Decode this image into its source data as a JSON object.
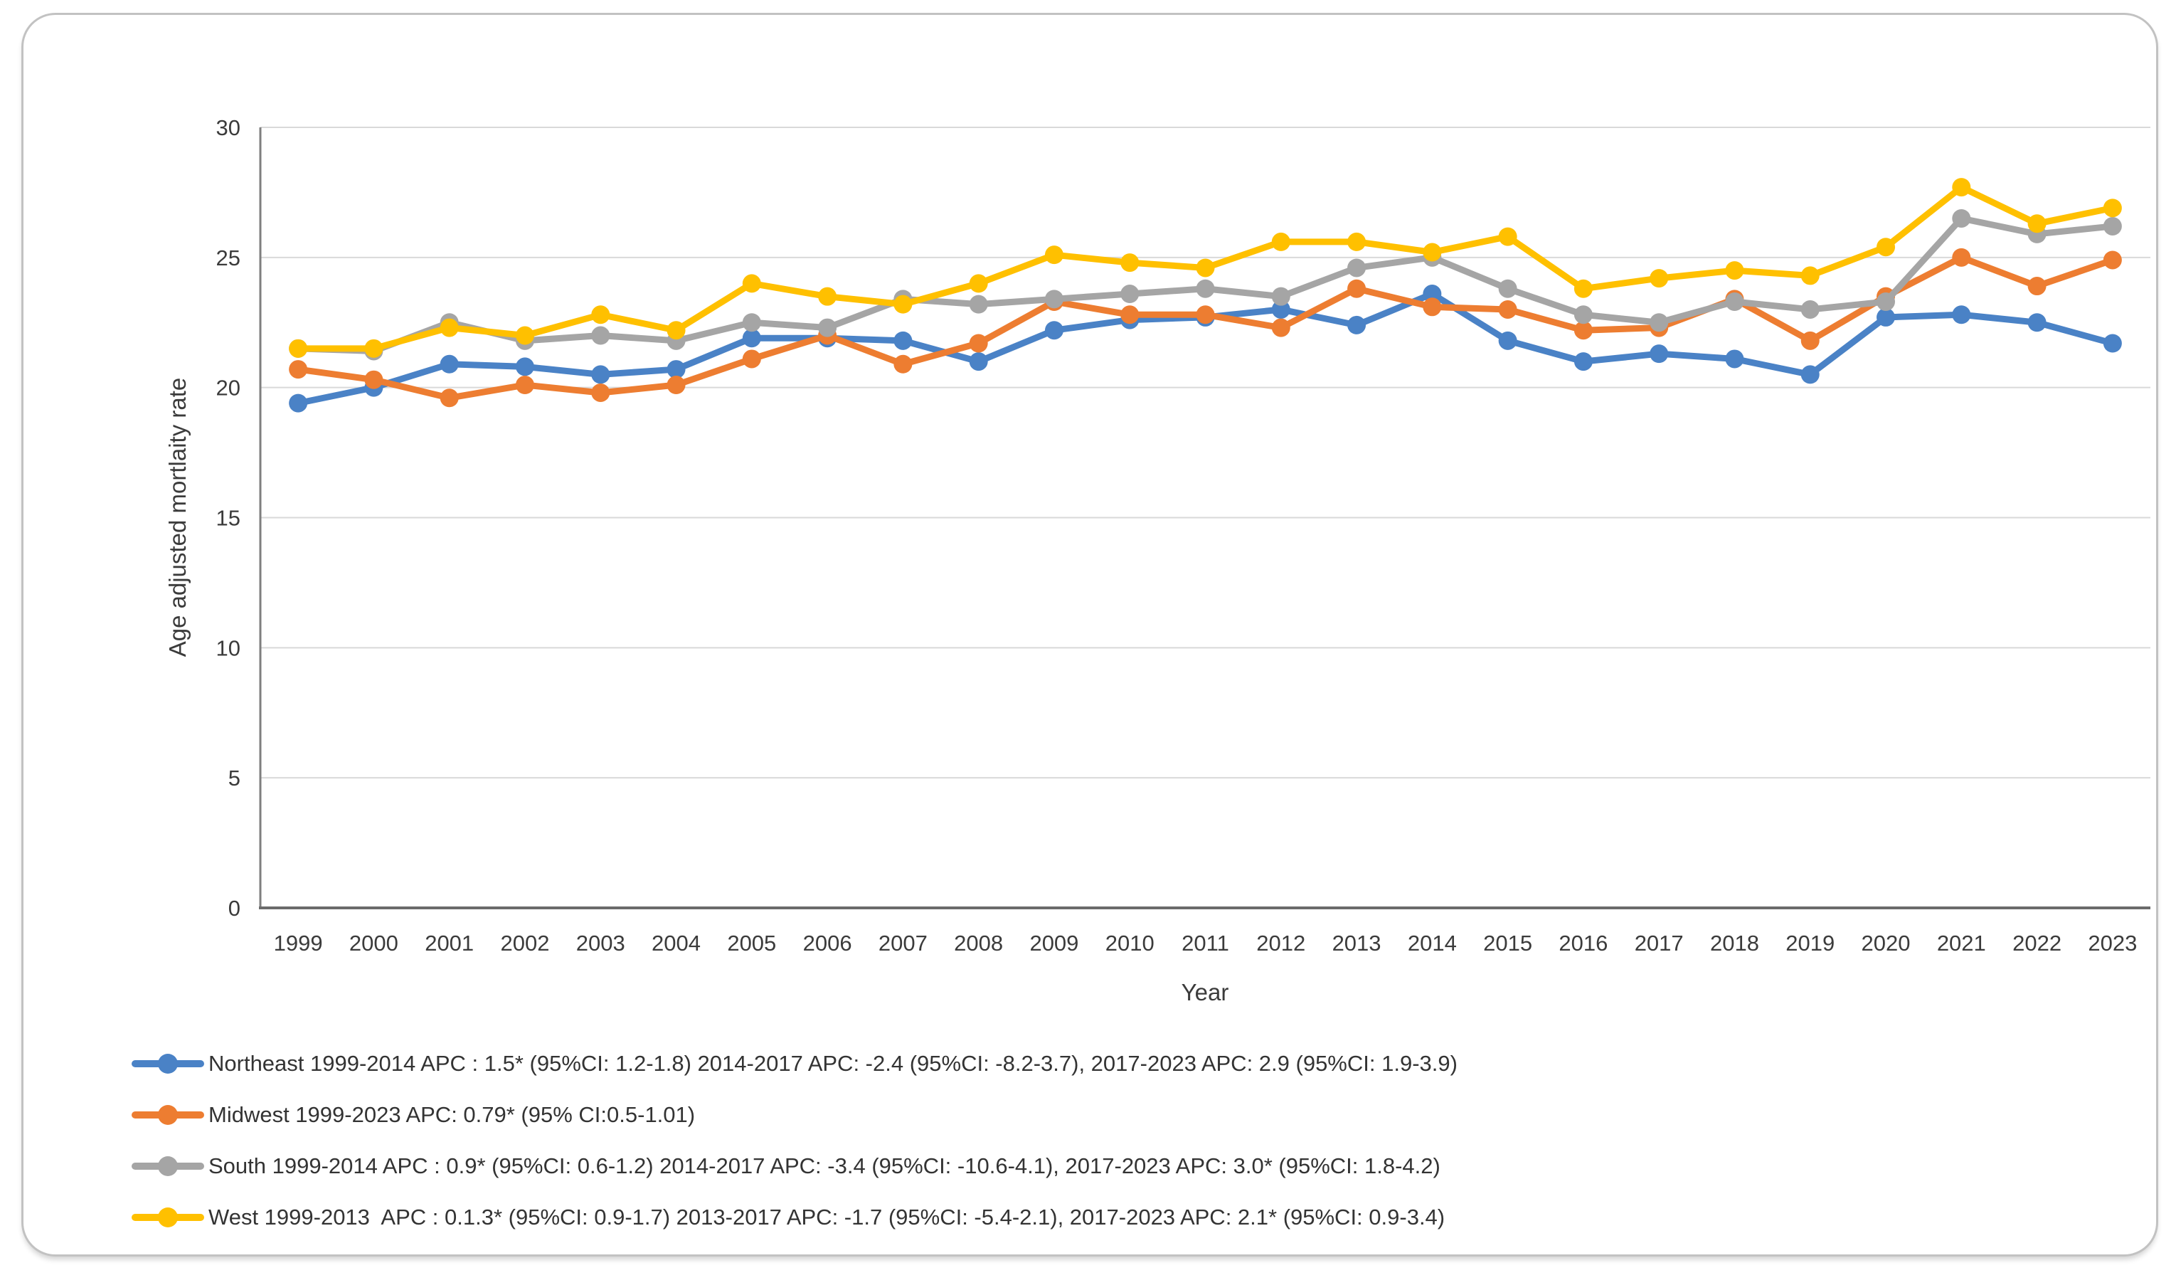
{
  "chart_data": {
    "type": "line",
    "title": "",
    "xlabel": "Year",
    "ylabel": "Age adjusted mortlaity rate",
    "ylim": [
      0,
      30
    ],
    "yticks": [
      0,
      5,
      10,
      15,
      20,
      25,
      30
    ],
    "grid": "horizontal",
    "legend_position": "bottom-left",
    "axis_color": "#7f7f7f",
    "grid_color": "#d9d9d9",
    "categories": [
      1999,
      2000,
      2001,
      2002,
      2003,
      2004,
      2005,
      2006,
      2007,
      2008,
      2009,
      2010,
      2011,
      2012,
      2013,
      2014,
      2015,
      2016,
      2017,
      2018,
      2019,
      2020,
      2021,
      2022,
      2023
    ],
    "series": [
      {
        "name": "Northeast",
        "color": "#4a82c6",
        "legend": "Northeast 1999-2014 APC : 1.5* (95%CI: 1.2-1.8) 2014-2017 APC: -2.4 (95%CI: -8.2-3.7), 2017-2023 APC: 2.9 (95%CI: 1.9-3.9)",
        "values": [
          19.4,
          20.0,
          20.9,
          20.8,
          20.5,
          20.7,
          21.9,
          21.9,
          21.8,
          21.0,
          22.2,
          22.6,
          22.7,
          23.0,
          22.4,
          23.6,
          21.8,
          21.0,
          21.3,
          21.1,
          20.5,
          22.7,
          22.8,
          22.5,
          21.7
        ]
      },
      {
        "name": "Midwest",
        "color": "#ed7d31",
        "legend": "Midwest 1999-2023 APC: 0.79* (95% CI:0.5-1.01)",
        "values": [
          20.7,
          20.3,
          19.6,
          20.1,
          19.8,
          20.1,
          21.1,
          22.0,
          20.9,
          21.7,
          23.3,
          22.8,
          22.8,
          22.3,
          23.8,
          23.1,
          23.0,
          22.2,
          22.3,
          23.4,
          21.8,
          23.5,
          25.0,
          23.9,
          24.9
        ]
      },
      {
        "name": "South",
        "color": "#a5a5a5",
        "legend": "South 1999-2014 APC : 0.9* (95%CI: 0.6-1.2) 2014-2017 APC: -3.4 (95%CI: -10.6-4.1), 2017-2023 APC: 3.0* (95%CI: 1.8-4.2)",
        "values": [
          21.5,
          21.4,
          22.5,
          21.8,
          22.0,
          21.8,
          22.5,
          22.3,
          23.4,
          23.2,
          23.4,
          23.6,
          23.8,
          23.5,
          24.6,
          25.0,
          23.8,
          22.8,
          22.5,
          23.3,
          23.0,
          23.3,
          26.5,
          25.9,
          26.2
        ]
      },
      {
        "name": "West",
        "color": "#ffc000",
        "legend": "West 1999-2013  APC : 0.1.3* (95%CI: 0.9-1.7) 2013-2017 APC: -1.7 (95%CI: -5.4-2.1), 2017-2023 APC: 2.1* (95%CI: 0.9-3.4)",
        "values": [
          21.5,
          21.5,
          22.3,
          22.0,
          22.8,
          22.2,
          24.0,
          23.5,
          23.2,
          24.0,
          25.1,
          24.8,
          24.6,
          25.6,
          25.6,
          25.2,
          25.8,
          23.8,
          24.2,
          24.5,
          24.3,
          25.4,
          27.7,
          26.3,
          26.9
        ]
      }
    ]
  }
}
